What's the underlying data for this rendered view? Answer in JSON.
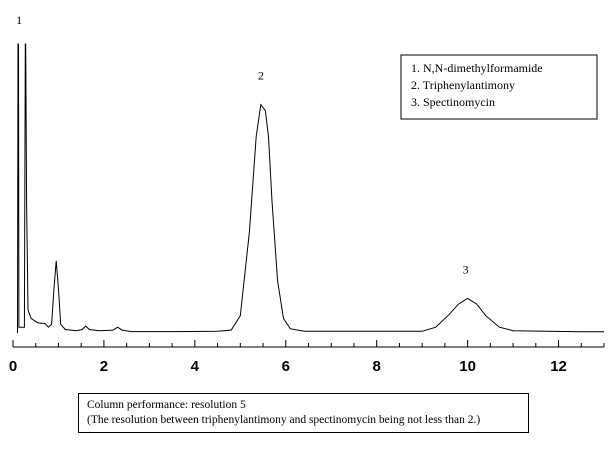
{
  "chart_data": {
    "type": "line",
    "title": "",
    "xlabel": "",
    "ylabel": "",
    "xlim": [
      0,
      13
    ],
    "ylim": [
      0,
      100
    ],
    "x_ticks": [
      "0",
      "2",
      "4",
      "6",
      "8",
      "10",
      "12"
    ],
    "x_tick_values": [
      0,
      2,
      4,
      6,
      8,
      10,
      12
    ],
    "series": [
      {
        "points": [
          [
            0.1,
            0
          ],
          [
            0.11,
            100
          ],
          [
            0.12,
            100
          ],
          [
            0.13,
            2
          ],
          [
            0.25,
            2
          ],
          [
            0.27,
            100
          ],
          [
            0.28,
            100
          ],
          [
            0.3,
            45
          ],
          [
            0.33,
            8
          ],
          [
            0.4,
            5
          ],
          [
            0.55,
            3.5
          ],
          [
            0.7,
            3.3
          ],
          [
            0.78,
            2
          ],
          [
            0.85,
            3
          ],
          [
            0.9,
            15
          ],
          [
            0.95,
            25
          ],
          [
            1.0,
            15
          ],
          [
            1.05,
            3
          ],
          [
            1.15,
            1.2
          ],
          [
            1.4,
            0.8
          ],
          [
            1.52,
            1.2
          ],
          [
            1.6,
            2.4
          ],
          [
            1.68,
            1.2
          ],
          [
            1.9,
            0.8
          ],
          [
            2.2,
            1
          ],
          [
            2.3,
            2
          ],
          [
            2.4,
            1
          ],
          [
            2.6,
            0.5
          ],
          [
            3.6,
            0.5
          ],
          [
            4.5,
            0.6
          ],
          [
            4.8,
            1
          ],
          [
            5.0,
            6
          ],
          [
            5.2,
            35
          ],
          [
            5.35,
            68
          ],
          [
            5.45,
            79
          ],
          [
            5.55,
            77
          ],
          [
            5.62,
            68
          ],
          [
            5.7,
            45
          ],
          [
            5.82,
            18
          ],
          [
            5.95,
            5
          ],
          [
            6.1,
            1.5
          ],
          [
            6.4,
            0.6
          ],
          [
            8.0,
            0.6
          ],
          [
            9.0,
            0.6
          ],
          [
            9.3,
            2
          ],
          [
            9.6,
            6.5
          ],
          [
            9.8,
            10
          ],
          [
            10.0,
            12
          ],
          [
            10.2,
            10
          ],
          [
            10.4,
            6
          ],
          [
            10.7,
            2
          ],
          [
            11.0,
            0.8
          ],
          [
            12.5,
            0.4
          ],
          [
            13.0,
            0.4
          ]
        ]
      }
    ],
    "peak_labels": [
      {
        "label": "1",
        "x": 0.2,
        "y": 100
      },
      {
        "label": "2",
        "x": 5.5,
        "y": 79
      },
      {
        "label": "3",
        "x": 10.0,
        "y": 12
      }
    ],
    "legend": {
      "placement": "top-right",
      "entries": [
        "1. N,N-dimethylformamide",
        "2. Triphenylantimony",
        "3. Spectinomycin"
      ]
    },
    "grid": false
  },
  "note": {
    "line1": "Column performance: resolution 5",
    "line2": "(The resolution between triphenylantimony and spectinomycin being not less than 2.)"
  }
}
